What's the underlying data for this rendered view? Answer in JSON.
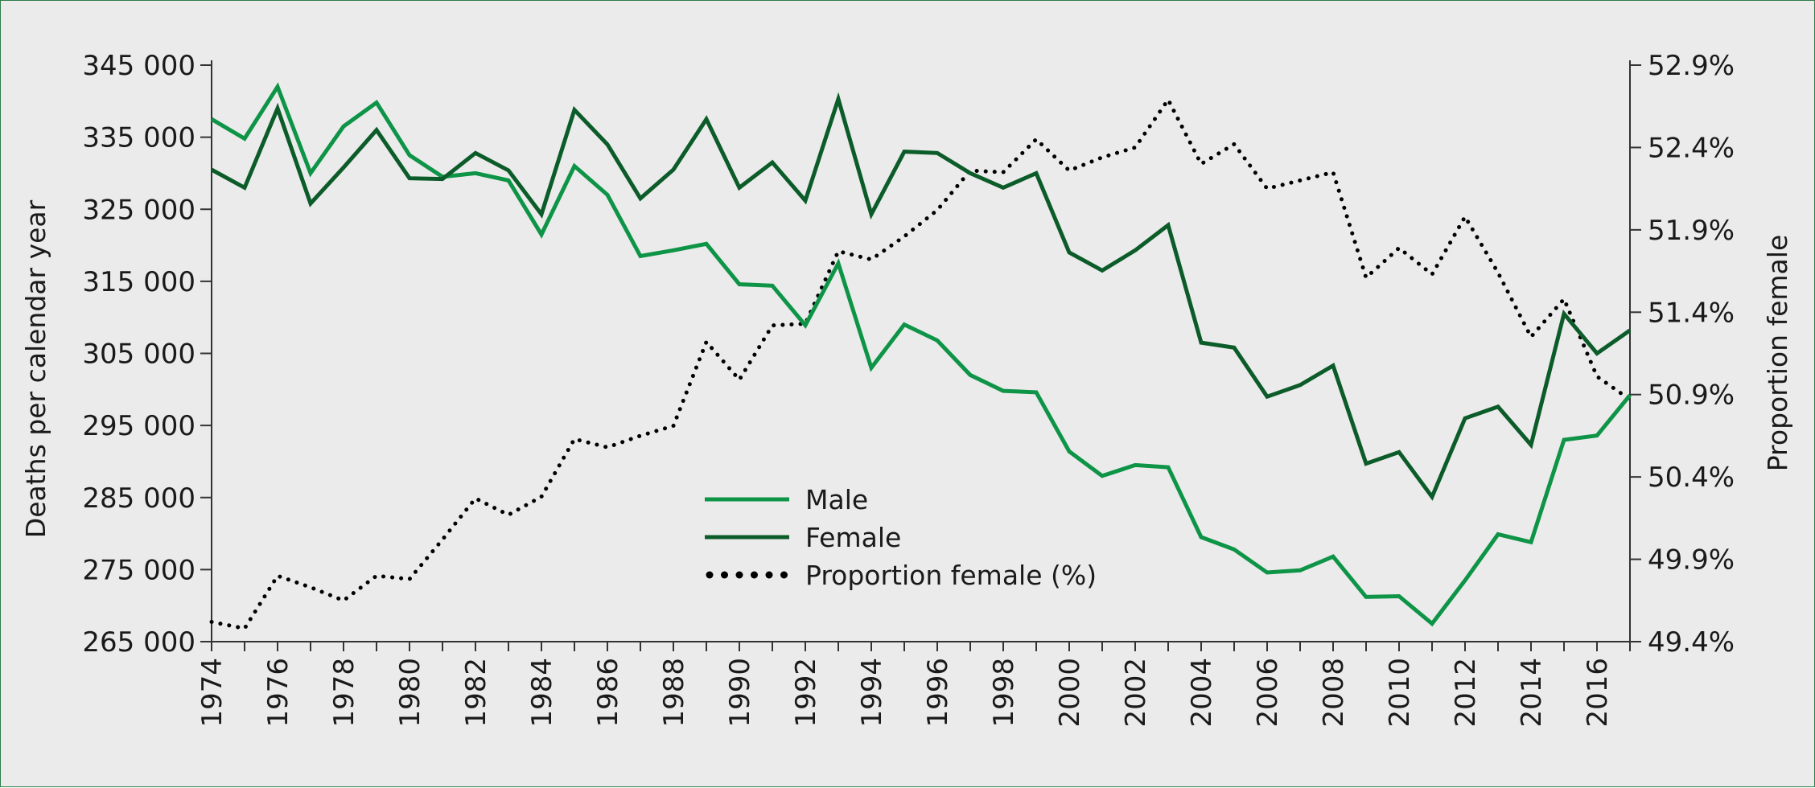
{
  "chart_data": {
    "type": "line",
    "xlabel": "",
    "ylabel": "Deaths per calendar year",
    "y2label": "Proportion female",
    "x": [
      1974,
      1975,
      1976,
      1977,
      1978,
      1979,
      1980,
      1981,
      1982,
      1983,
      1984,
      1985,
      1986,
      1987,
      1988,
      1989,
      1990,
      1991,
      1992,
      1993,
      1994,
      1995,
      1996,
      1997,
      1998,
      1999,
      2000,
      2001,
      2002,
      2003,
      2004,
      2005,
      2006,
      2007,
      2008,
      2009,
      2010,
      2011,
      2012,
      2013,
      2014,
      2015,
      2016,
      2017
    ],
    "xlim": [
      1974,
      2017
    ],
    "x_ticks": [
      "1974",
      "1976",
      "1978",
      "1980",
      "1982",
      "1984",
      "1986",
      "1988",
      "1990",
      "1992",
      "1994",
      "1996",
      "1998",
      "2000",
      "2002",
      "2004",
      "2006",
      "2008",
      "2010",
      "2012",
      "2014",
      "2016"
    ],
    "ylim": [
      265000,
      345000
    ],
    "y_ticks": [
      "265 000",
      "275 000",
      "285 000",
      "295 000",
      "305 000",
      "315 000",
      "325 000",
      "335 000",
      "345 000"
    ],
    "y2lim": [
      49.4,
      52.9
    ],
    "y2_ticks": [
      "49.4%",
      "49.9%",
      "50.4%",
      "50.9%",
      "51.4%",
      "51.9%",
      "52.4%",
      "52.9%"
    ],
    "grid": false,
    "legend_position": "center",
    "colors": {
      "male": "#0e9447",
      "female": "#0c5c2a",
      "proportion": "#000000",
      "background": "#ebebeb"
    },
    "series": [
      {
        "name": "Male",
        "axis": "left",
        "style": "solid",
        "values": [
          337500,
          334800,
          342000,
          330000,
          336500,
          339800,
          332500,
          329500,
          330000,
          329000,
          321500,
          331000,
          327000,
          318500,
          319300,
          320200,
          314600,
          314400,
          308900,
          317500,
          303000,
          309000,
          306800,
          302000,
          299800,
          299600,
          291400,
          288000,
          289500,
          289200,
          279500,
          277800,
          274600,
          274900,
          276800,
          271200,
          271300,
          267500,
          273500,
          279900,
          278800,
          293000,
          293600,
          299200
        ]
      },
      {
        "name": "Female",
        "axis": "left",
        "style": "solid",
        "values": [
          330500,
          328000,
          339000,
          325800,
          330800,
          336000,
          329300,
          329200,
          332800,
          330400,
          324300,
          338800,
          334000,
          326500,
          330500,
          337500,
          328000,
          331500,
          326200,
          340300,
          324300,
          333000,
          332800,
          330000,
          328000,
          330000,
          319000,
          316500,
          319300,
          322800,
          306500,
          305800,
          299000,
          300600,
          303300,
          289700,
          291300,
          285100,
          296000,
          297600,
          292300,
          310500,
          305000,
          308200
        ]
      },
      {
        "name": "Proportion female (%)",
        "axis": "right",
        "style": "dotted",
        "values": [
          49.52,
          49.48,
          49.8,
          49.73,
          49.65,
          49.8,
          49.78,
          50.02,
          50.27,
          50.17,
          50.28,
          50.63,
          50.58,
          50.65,
          50.71,
          51.22,
          50.99,
          51.32,
          51.33,
          51.77,
          51.72,
          51.86,
          52.02,
          52.26,
          52.25,
          52.45,
          52.26,
          52.34,
          52.4,
          52.69,
          52.3,
          52.42,
          52.15,
          52.2,
          52.25,
          51.61,
          51.79,
          51.63,
          51.98,
          51.64,
          51.25,
          51.48,
          51.01,
          50.87
        ]
      }
    ]
  }
}
